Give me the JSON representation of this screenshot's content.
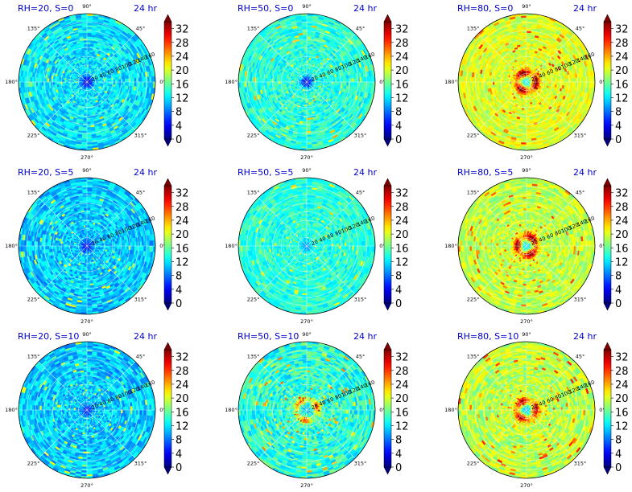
{
  "figure": {
    "angle_labels": [
      "0°",
      "45°",
      "90°",
      "135°",
      "180°",
      "225°",
      "270°",
      "315°"
    ],
    "radial_labels": [
      "20",
      "40",
      "60",
      "80",
      "100",
      "120",
      "140",
      "160"
    ],
    "colorbar_ticks": [
      "0",
      "4",
      "8",
      "12",
      "16",
      "20",
      "24",
      "28",
      "32"
    ],
    "colors": {
      "title": "#0000cc",
      "grid": "#ffffff",
      "text": "#000000"
    },
    "colormap": "jet"
  },
  "chart_data": [
    {
      "type": "heatmap",
      "projection": "polar",
      "title": "RH=20, S=0",
      "title_right": "24 hr",
      "rlim": [
        0,
        160
      ],
      "clim": [
        0,
        34
      ],
      "typical_value": 12,
      "center_value": 1.5,
      "peak_radius": 0,
      "peak_value": 12,
      "noise": 3.0
    },
    {
      "type": "heatmap",
      "projection": "polar",
      "title": "RH=50, S=0",
      "title_right": "24 hr",
      "rlim": [
        0,
        160
      ],
      "clim": [
        0,
        34
      ],
      "typical_value": 14,
      "center_value": 2.0,
      "peak_radius": 0,
      "peak_value": 14,
      "noise": 3.0
    },
    {
      "type": "heatmap",
      "projection": "polar",
      "title": "RH=80, S=0",
      "title_right": "24 hr",
      "rlim": [
        0,
        160
      ],
      "clim": [
        0,
        34
      ],
      "typical_value": 20,
      "center_value": 12,
      "peak_radius": 22,
      "peak_value": 33,
      "noise": 2.5
    },
    {
      "type": "heatmap",
      "projection": "polar",
      "title": "RH=20, S=5",
      "title_right": "24 hr",
      "rlim": [
        0,
        160
      ],
      "clim": [
        0,
        34
      ],
      "typical_value": 11,
      "center_value": 3.0,
      "peak_radius": 0,
      "peak_value": 11,
      "noise": 3.0
    },
    {
      "type": "heatmap",
      "projection": "polar",
      "title": "RH=50, S=5",
      "title_right": "24 hr",
      "rlim": [
        0,
        160
      ],
      "clim": [
        0,
        34
      ],
      "typical_value": 14,
      "center_value": 9,
      "peak_radius": 0,
      "peak_value": 14,
      "noise": 2.5
    },
    {
      "type": "heatmap",
      "projection": "polar",
      "title": "RH=80, S=5",
      "title_right": "24 hr",
      "rlim": [
        0,
        160
      ],
      "clim": [
        0,
        34
      ],
      "typical_value": 19,
      "center_value": 11,
      "peak_radius": 22,
      "peak_value": 33,
      "noise": 2.5
    },
    {
      "type": "heatmap",
      "projection": "polar",
      "title": "RH=20, S=10",
      "title_right": "24 hr",
      "rlim": [
        0,
        160
      ],
      "clim": [
        0,
        34
      ],
      "typical_value": 11,
      "center_value": 4.0,
      "peak_radius": 0,
      "peak_value": 11,
      "noise": 3.0
    },
    {
      "type": "heatmap",
      "projection": "polar",
      "title": "RH=50, S=10",
      "title_right": "24 hr",
      "rlim": [
        0,
        160
      ],
      "clim": [
        0,
        34
      ],
      "typical_value": 14,
      "center_value": 10,
      "peak_radius": 25,
      "peak_value": 24,
      "noise": 3.5
    },
    {
      "type": "heatmap",
      "projection": "polar",
      "title": "RH=80, S=10",
      "title_right": "24 hr",
      "rlim": [
        0,
        160
      ],
      "clim": [
        0,
        34
      ],
      "typical_value": 19,
      "center_value": 10,
      "peak_radius": 22,
      "peak_value": 31,
      "noise": 3.0
    }
  ]
}
